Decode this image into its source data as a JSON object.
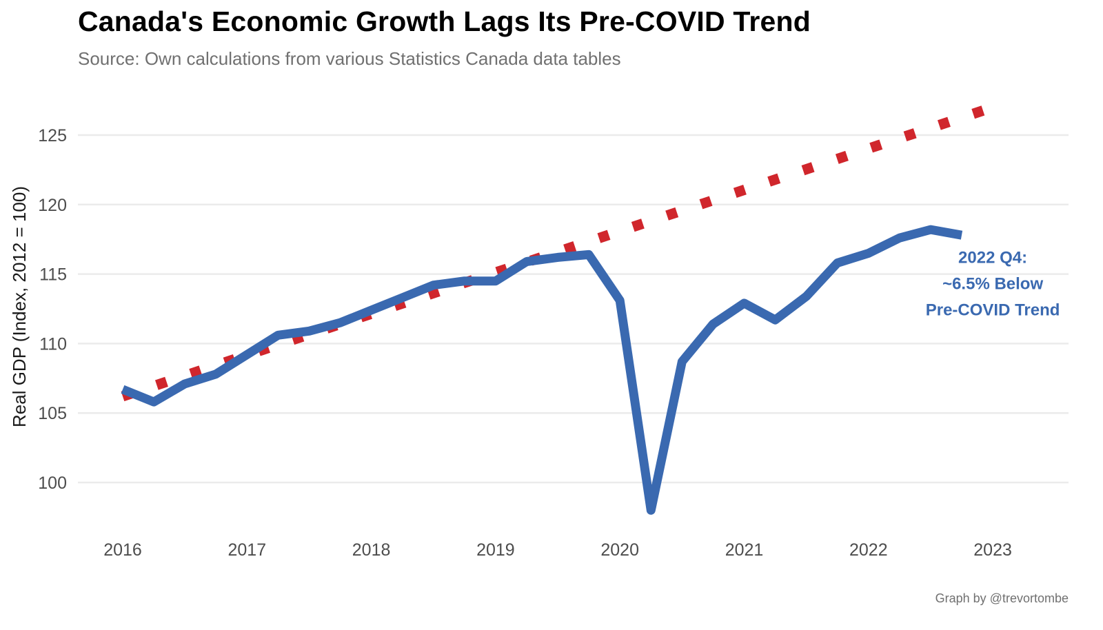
{
  "chart_data": {
    "type": "line",
    "title": "Canada's Economic Growth Lags Its Pre-COVID Trend",
    "subtitle": "Source: Own calculations from various Statistics Canada data tables",
    "caption": "Graph by @trevortombe",
    "xlabel": "",
    "ylabel": "Real GDP (Index, 2012 = 100)",
    "ylim": [
      97,
      127.5
    ],
    "xlim": [
      2015.7,
      2023.3
    ],
    "yticks": [
      100,
      105,
      110,
      115,
      120,
      125
    ],
    "xticks": [
      2016,
      2017,
      2018,
      2019,
      2020,
      2021,
      2022,
      2023
    ],
    "grid": "horizontal",
    "legend": "none",
    "series": [
      {
        "name": "Real GDP",
        "style": "solid",
        "color": "#3a69b0",
        "x": [
          2016.0,
          2016.25,
          2016.5,
          2016.75,
          2017.0,
          2017.25,
          2017.5,
          2017.75,
          2018.0,
          2018.25,
          2018.5,
          2018.75,
          2019.0,
          2019.25,
          2019.5,
          2019.75,
          2020.0,
          2020.25,
          2020.5,
          2020.75,
          2021.0,
          2021.25,
          2021.5,
          2021.75,
          2022.0,
          2022.25,
          2022.5,
          2022.75
        ],
        "values": [
          106.7,
          105.8,
          107.1,
          107.8,
          109.2,
          110.6,
          110.9,
          111.5,
          112.4,
          113.3,
          114.2,
          114.5,
          114.5,
          115.9,
          116.2,
          116.4,
          113.1,
          98.0,
          108.7,
          111.4,
          112.9,
          111.7,
          113.4,
          115.8,
          116.5,
          117.6,
          118.2,
          117.8
        ]
      },
      {
        "name": "Pre-COVID Trend",
        "style": "dotted",
        "color": "#d0262c",
        "x": [
          2016.0,
          2023.0
        ],
        "values": [
          106.2,
          127.0
        ]
      }
    ],
    "annotations": [
      {
        "lines": [
          "2022 Q4:",
          "~6.5% Below",
          "Pre-COVID Trend"
        ],
        "x": 2023.0,
        "y": 114.4,
        "color": "#3a69b0"
      }
    ]
  }
}
